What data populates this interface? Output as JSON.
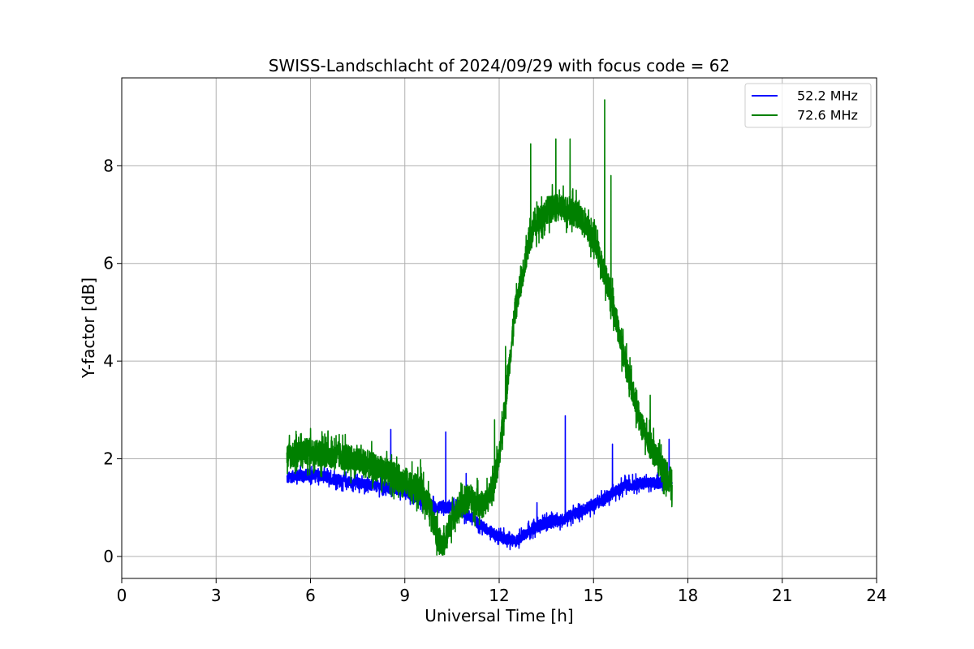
{
  "chart_data": {
    "type": "line",
    "title": "SWISS-Landschlacht of 2024/09/29 with focus code = 62",
    "xlabel": "Universal Time [h]",
    "ylabel": "Y-factor [dB]",
    "xlim": [
      0,
      24
    ],
    "ylim": [
      -0.45,
      9.8
    ],
    "xticks": [
      0,
      3,
      6,
      9,
      12,
      15,
      18,
      21,
      24
    ],
    "yticks": [
      0,
      2,
      4,
      6,
      8
    ],
    "grid": true,
    "legend_position": "top-right",
    "series": [
      {
        "name": "52.2 MHz",
        "color": "#0000ff",
        "x": [
          5.25,
          5.5,
          6.0,
          6.5,
          7.0,
          7.5,
          8.0,
          8.5,
          9.0,
          9.5,
          10.0,
          10.5,
          11.0,
          11.5,
          12.0,
          12.5,
          13.0,
          13.5,
          14.0,
          14.5,
          15.0,
          15.5,
          16.0,
          16.5,
          17.0,
          17.5
        ],
        "values": [
          1.6,
          1.65,
          1.68,
          1.62,
          1.55,
          1.5,
          1.45,
          1.4,
          1.35,
          1.15,
          1.0,
          1.0,
          0.85,
          0.6,
          0.4,
          0.3,
          0.55,
          0.7,
          0.75,
          0.9,
          1.05,
          1.25,
          1.45,
          1.5,
          1.5,
          1.55
        ],
        "noise": 0.12,
        "spikes": [
          {
            "x": 8.55,
            "y": 2.6
          },
          {
            "x": 10.3,
            "y": 2.55
          },
          {
            "x": 10.95,
            "y": 1.7
          },
          {
            "x": 14.1,
            "y": 2.88
          },
          {
            "x": 13.2,
            "y": 1.1
          },
          {
            "x": 15.6,
            "y": 2.3
          },
          {
            "x": 17.4,
            "y": 2.4
          }
        ]
      },
      {
        "name": "72.6 MHz",
        "color": "#008000",
        "x": [
          5.25,
          5.5,
          6.0,
          6.5,
          7.0,
          7.5,
          8.0,
          8.5,
          9.0,
          9.5,
          9.8,
          10.0,
          10.2,
          10.5,
          11.0,
          11.5,
          11.75,
          12.0,
          12.25,
          12.5,
          13.0,
          13.5,
          14.0,
          14.5,
          15.0,
          15.5,
          16.0,
          16.5,
          17.0,
          17.5
        ],
        "values": [
          2.05,
          2.1,
          2.15,
          2.1,
          2.05,
          1.95,
          1.85,
          1.7,
          1.55,
          1.35,
          1.0,
          0.5,
          0.15,
          0.8,
          1.2,
          1.05,
          1.3,
          2.0,
          3.5,
          5.0,
          6.6,
          7.1,
          7.15,
          7.0,
          6.5,
          5.5,
          4.0,
          2.7,
          2.0,
          1.5
        ],
        "noise": 0.28,
        "spikes": [
          {
            "x": 6.0,
            "y": 2.62
          },
          {
            "x": 9.5,
            "y": 1.98
          },
          {
            "x": 11.3,
            "y": 1.6
          },
          {
            "x": 11.85,
            "y": 2.8
          },
          {
            "x": 12.2,
            "y": 4.3
          },
          {
            "x": 13.0,
            "y": 8.45
          },
          {
            "x": 13.8,
            "y": 8.55
          },
          {
            "x": 14.25,
            "y": 8.55
          },
          {
            "x": 15.35,
            "y": 9.35
          },
          {
            "x": 15.55,
            "y": 7.8
          },
          {
            "x": 16.0,
            "y": 4.3
          },
          {
            "x": 16.8,
            "y": 3.3
          }
        ]
      }
    ]
  }
}
